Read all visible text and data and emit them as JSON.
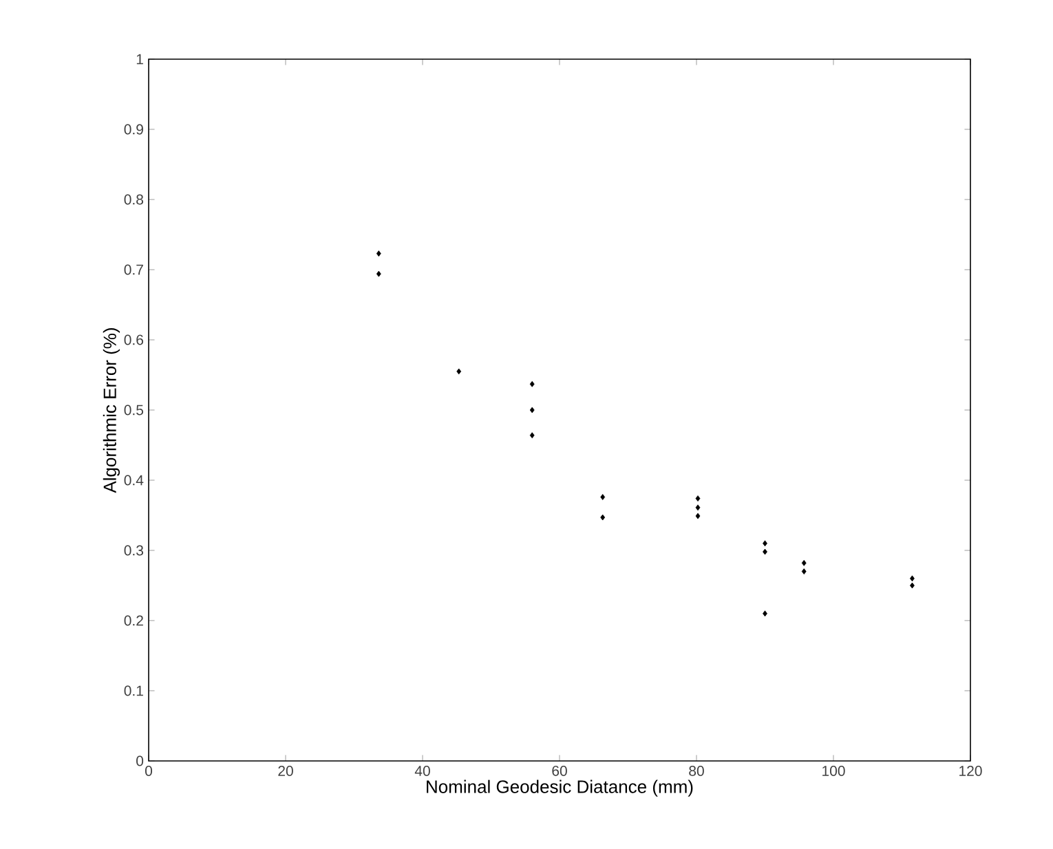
{
  "chart_data": {
    "type": "scatter",
    "xlabel": "Nominal Geodesic Diatance (mm)",
    "ylabel": "Algorithmic Error (%)",
    "x": [
      33.6,
      33.6,
      45.3,
      56,
      56,
      56,
      66.3,
      66.3,
      80.2,
      80.2,
      80.2,
      90,
      90,
      90,
      95.7,
      95.7,
      111.5,
      111.5
    ],
    "values": [
      0.723,
      0.694,
      0.555,
      0.537,
      0.5,
      0.464,
      0.376,
      0.347,
      0.374,
      0.361,
      0.349,
      0.31,
      0.298,
      0.21,
      0.282,
      0.27,
      0.26,
      0.25
    ],
    "color": "#000000",
    "marker": "diamond",
    "xlim": [
      0,
      120
    ],
    "ylim": [
      0,
      1
    ],
    "xticks": [
      0,
      20,
      40,
      60,
      80,
      100,
      120
    ],
    "yticks": [
      0,
      0.1,
      0.2,
      0.3,
      0.4,
      0.5,
      0.6,
      0.7,
      0.8,
      0.9,
      1
    ]
  }
}
